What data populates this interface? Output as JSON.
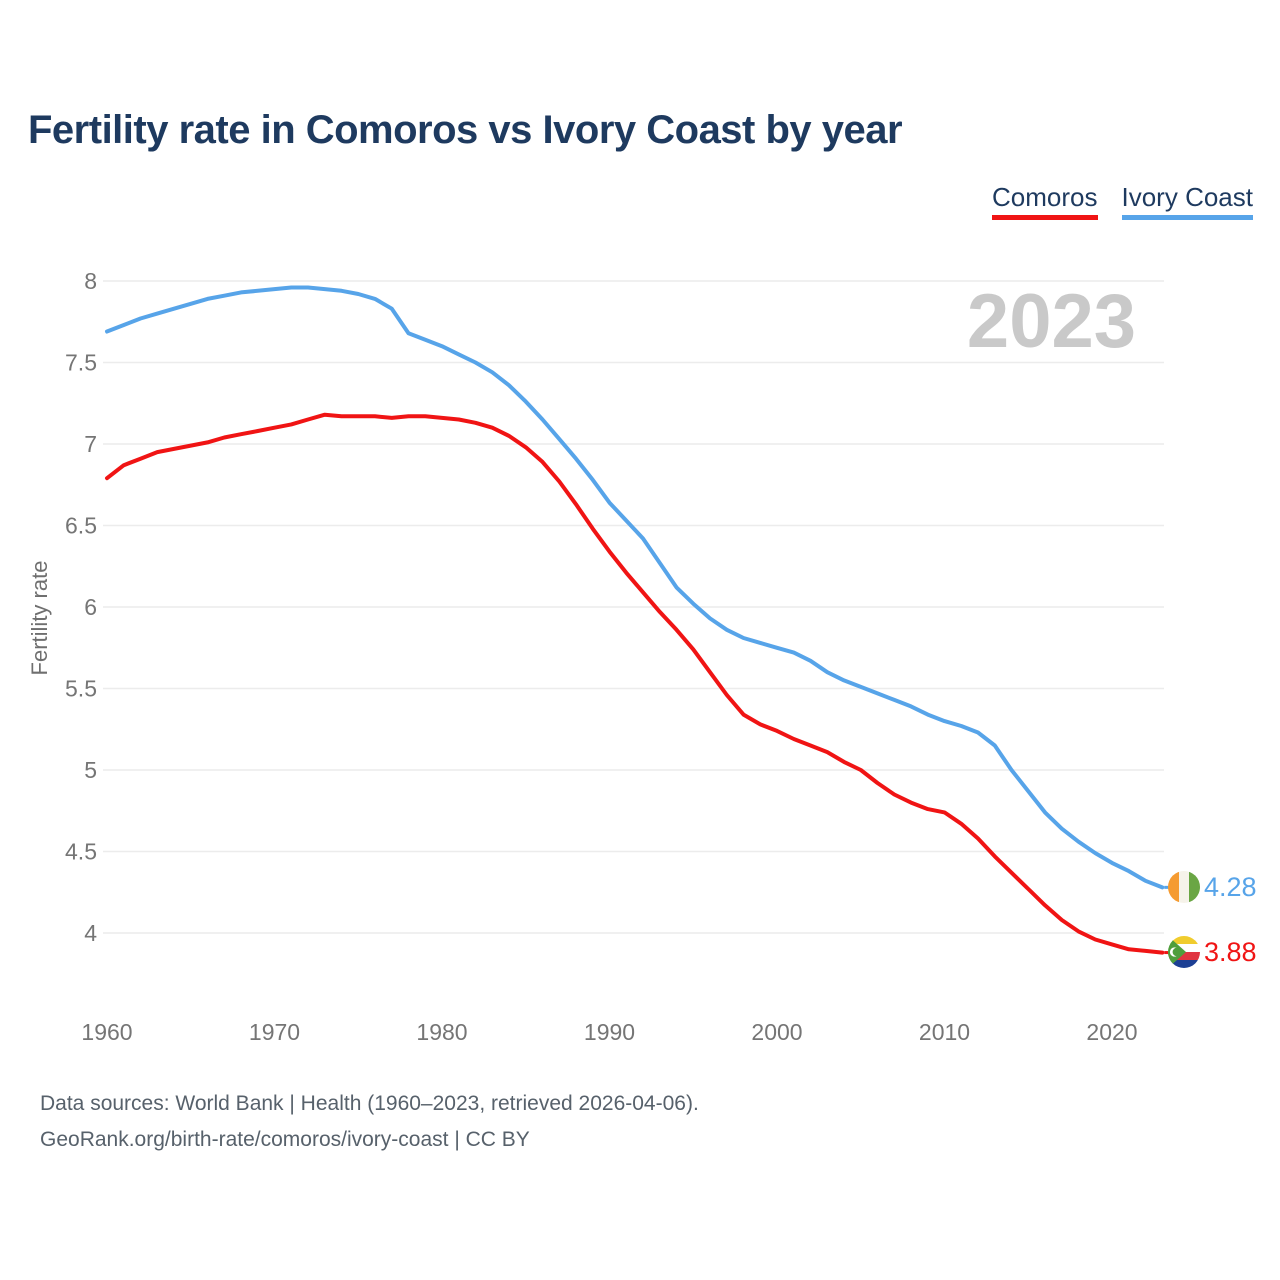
{
  "title": "Fertility rate in Comoros vs Ivory Coast by year",
  "watermark": "2023",
  "legend": {
    "items": [
      {
        "label": "Comoros",
        "color": "#f01414"
      },
      {
        "label": "Ivory Coast",
        "color": "#57a4e9"
      }
    ]
  },
  "end_labels": [
    {
      "series": "Ivory Coast",
      "value": "4.28",
      "color": "#57a4e9",
      "flag": "ivory-coast-flag"
    },
    {
      "series": "Comoros",
      "value": "3.88",
      "color": "#f01414",
      "flag": "comoros-flag"
    }
  ],
  "footer": {
    "line1": "Data sources: World Bank | Health (1960–2023, retrieved 2026-04-06).",
    "line2": "GeoRank.org/birth-rate/comoros/ivory-coast | CC BY"
  },
  "chart_data": {
    "type": "line",
    "title": "Fertility rate in Comoros vs Ivory Coast by year",
    "xlabel": "",
    "ylabel": "Fertility rate",
    "x_ticks": [
      1960,
      1970,
      1980,
      1990,
      2000,
      2010,
      2020
    ],
    "y_ticks": [
      8,
      7.5,
      7,
      6.5,
      6,
      5.5,
      5,
      4.5,
      4
    ],
    "ylim": [
      3.75,
      8.1
    ],
    "xlim": [
      1960,
      2023
    ],
    "grid": true,
    "legend_position": "top-right",
    "x": [
      1960,
      1961,
      1962,
      1963,
      1964,
      1965,
      1966,
      1967,
      1968,
      1969,
      1970,
      1971,
      1972,
      1973,
      1974,
      1975,
      1976,
      1977,
      1978,
      1979,
      1980,
      1981,
      1982,
      1983,
      1984,
      1985,
      1986,
      1987,
      1988,
      1989,
      1990,
      1991,
      1992,
      1993,
      1994,
      1995,
      1996,
      1997,
      1998,
      1999,
      2000,
      2001,
      2002,
      2003,
      2004,
      2005,
      2006,
      2007,
      2008,
      2009,
      2010,
      2011,
      2012,
      2013,
      2014,
      2015,
      2016,
      2017,
      2018,
      2019,
      2020,
      2021,
      2022,
      2023
    ],
    "series": [
      {
        "name": "Comoros",
        "color": "#f01414",
        "end_value": 3.88,
        "values": [
          6.79,
          6.87,
          6.91,
          6.95,
          6.97,
          6.99,
          7.01,
          7.04,
          7.06,
          7.08,
          7.1,
          7.12,
          7.15,
          7.18,
          7.17,
          7.17,
          7.17,
          7.16,
          7.17,
          7.17,
          7.16,
          7.15,
          7.13,
          7.1,
          7.05,
          6.98,
          6.89,
          6.77,
          6.63,
          6.48,
          6.34,
          6.21,
          6.09,
          5.97,
          5.86,
          5.74,
          5.6,
          5.46,
          5.34,
          5.28,
          5.24,
          5.19,
          5.15,
          5.11,
          5.05,
          5.0,
          4.92,
          4.85,
          4.8,
          4.76,
          4.74,
          4.67,
          4.58,
          4.47,
          4.37,
          4.27,
          4.17,
          4.08,
          4.01,
          3.96,
          3.93,
          3.9,
          3.89,
          3.88
        ]
      },
      {
        "name": "Ivory Coast",
        "color": "#57a4e9",
        "end_value": 4.28,
        "values": [
          7.69,
          7.73,
          7.77,
          7.8,
          7.83,
          7.86,
          7.89,
          7.91,
          7.93,
          7.94,
          7.95,
          7.96,
          7.96,
          7.95,
          7.94,
          7.92,
          7.89,
          7.83,
          7.68,
          7.64,
          7.6,
          7.55,
          7.5,
          7.44,
          7.36,
          7.26,
          7.15,
          7.03,
          6.91,
          6.78,
          6.64,
          6.53,
          6.42,
          6.27,
          6.12,
          6.02,
          5.93,
          5.86,
          5.81,
          5.78,
          5.75,
          5.72,
          5.67,
          5.6,
          5.55,
          5.51,
          5.47,
          5.43,
          5.39,
          5.34,
          5.3,
          5.27,
          5.23,
          5.15,
          5.0,
          4.87,
          4.74,
          4.64,
          4.56,
          4.49,
          4.43,
          4.38,
          4.32,
          4.28
        ]
      }
    ]
  },
  "colors": {
    "title": "#1e3a5f",
    "grid": "#ececec",
    "tick_text": "#757575",
    "axis_title": "#6f6f6f",
    "watermark": "#c9c9c9",
    "footer": "#57616b"
  }
}
